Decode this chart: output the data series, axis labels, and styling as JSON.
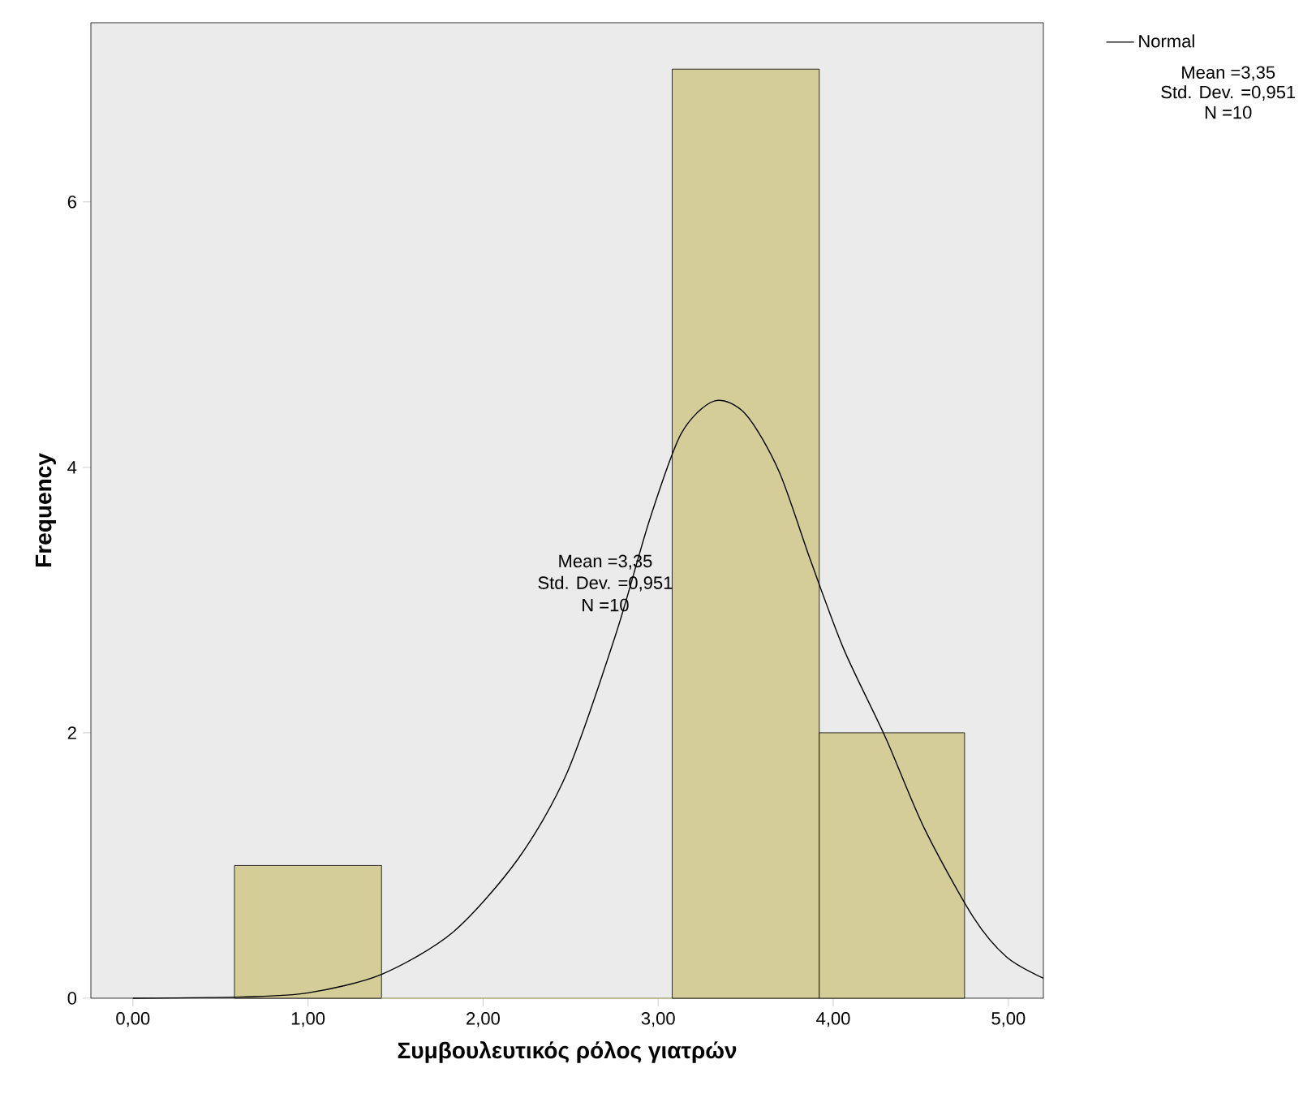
{
  "chart_data": {
    "type": "histogram",
    "xlabel": "Συμβουλευτικός ρόλος γιατρών",
    "ylabel": "Frequency",
    "bins": [
      0.58,
      1.42,
      3.08,
      3.92,
      4.75
    ],
    "values": [
      1,
      0,
      7,
      2
    ],
    "color": "#d4cd98",
    "series": [
      {
        "type": "line",
        "name": "Normal",
        "color": "#000000",
        "x": [
          0,
          0.63,
          1.0,
          1.42,
          1.83,
          2.2,
          2.48,
          2.76,
          2.95,
          3.13,
          3.32,
          3.5,
          3.69,
          3.87,
          4.06,
          4.3,
          4.52,
          4.8,
          4.99,
          5.2
        ],
        "values": [
          0,
          0.01,
          0.04,
          0.18,
          0.5,
          1.05,
          1.7,
          2.75,
          3.6,
          4.25,
          4.5,
          4.4,
          3.97,
          3.3,
          2.63,
          1.96,
          1.28,
          0.61,
          0.31,
          0.15
        ]
      }
    ],
    "xlim": [
      -0.24,
      5.2
    ],
    "ylim": [
      0,
      7.35
    ],
    "xticks": [
      {
        "value": 0,
        "label": "0,00"
      },
      {
        "value": 1,
        "label": "1,00"
      },
      {
        "value": 2,
        "label": "2,00"
      },
      {
        "value": 3,
        "label": "3,00"
      },
      {
        "value": 4,
        "label": "4,00"
      },
      {
        "value": 5,
        "label": "5,00"
      }
    ],
    "yticks": [
      0,
      2,
      4,
      6
    ],
    "legend": "top right",
    "grid": false,
    "annotations": [
      "Mean =3,35",
      "Std. Dev. =0,951",
      "N =10",
      "Mean =3,35",
      "Std. Dev. =0,951",
      "N =10"
    ]
  }
}
